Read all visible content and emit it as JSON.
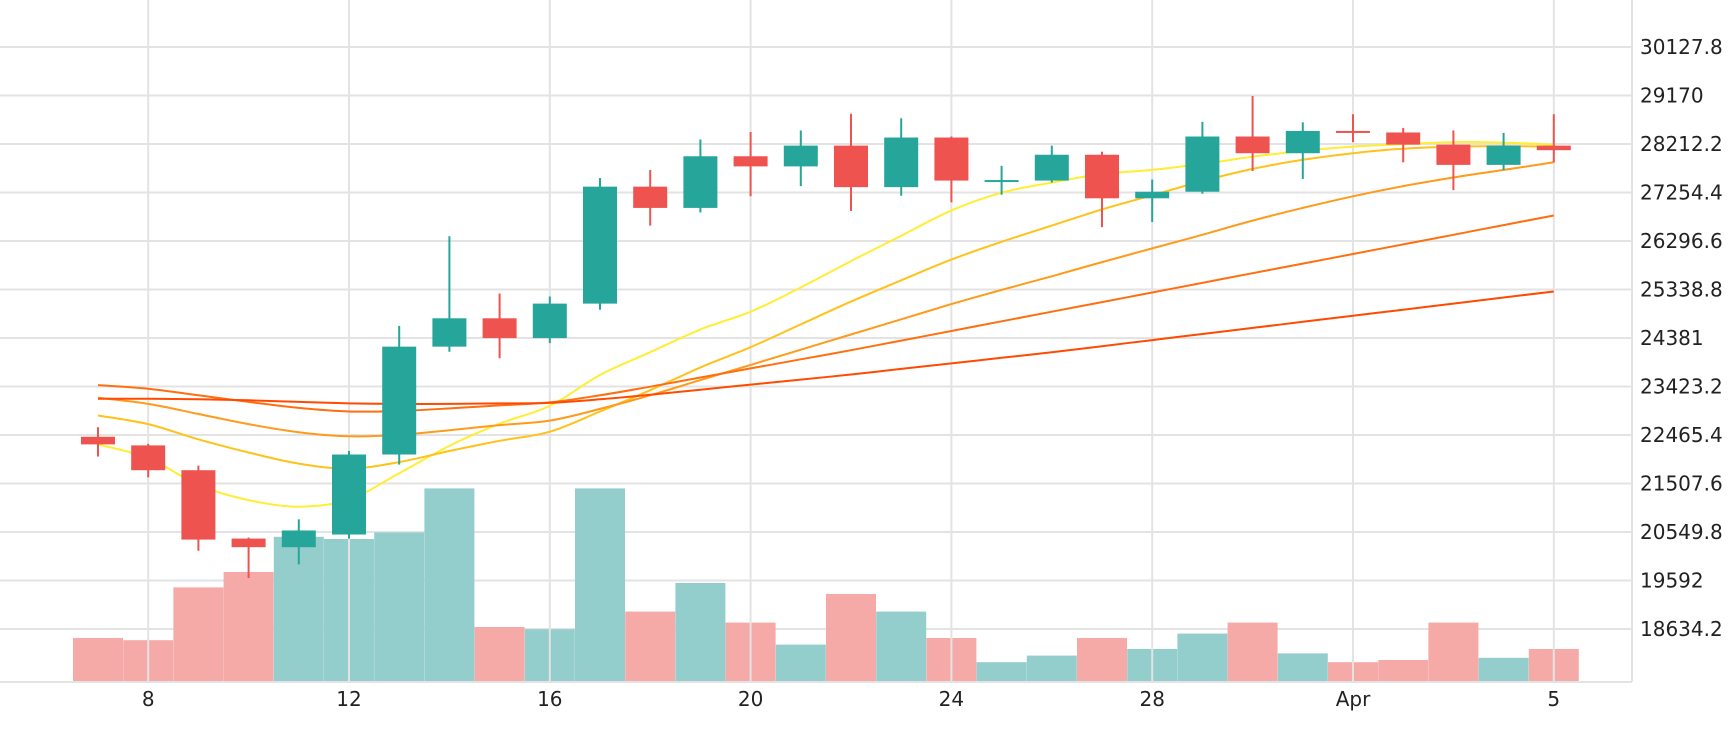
{
  "chart_data": {
    "type": "candlestick",
    "x_ticks": [
      "8",
      "12",
      "16",
      "20",
      "24",
      "28",
      "Apr",
      "5"
    ],
    "y_ticks": [
      "30127.8",
      "29170",
      "28212.2",
      "27254.4",
      "26296.6",
      "25338.8",
      "24381",
      "23423.2",
      "22465.4",
      "21507.6",
      "20549.8",
      "19592",
      "18634.2"
    ],
    "ylim": [
      17700,
      30500
    ],
    "grid": true,
    "colors": {
      "up": "#26a69a",
      "down": "#ef5350",
      "up_volume": "#93cecc",
      "down_volume": "#f5aaa8",
      "grid": "#e3e3e3",
      "ma_lines": [
        "#ffee33",
        "#ffc21a",
        "#ff9a1a",
        "#ff6f10",
        "#ff4a00"
      ]
    },
    "candles": [
      {
        "date": "Mar 7",
        "open": 22430,
        "high": 22620,
        "low": 22040,
        "close": 22280
      },
      {
        "date": "Mar 8",
        "open": 22260,
        "high": 22290,
        "low": 21630,
        "close": 21770
      },
      {
        "date": "Mar 9",
        "open": 21770,
        "high": 21860,
        "low": 20180,
        "close": 20400
      },
      {
        "date": "Mar 10",
        "open": 20420,
        "high": 20440,
        "low": 19640,
        "close": 20250
      },
      {
        "date": "Mar 11",
        "open": 20250,
        "high": 20800,
        "low": 19910,
        "close": 20580
      },
      {
        "date": "Mar 12",
        "open": 20500,
        "high": 22150,
        "low": 20420,
        "close": 22080
      },
      {
        "date": "Mar 13",
        "open": 22080,
        "high": 24620,
        "low": 21880,
        "close": 24210
      },
      {
        "date": "Mar 14",
        "open": 24210,
        "high": 26390,
        "low": 24110,
        "close": 24770
      },
      {
        "date": "Mar 15",
        "open": 24770,
        "high": 25260,
        "low": 23980,
        "close": 24380
      },
      {
        "date": "Mar 16",
        "open": 24380,
        "high": 25200,
        "low": 24280,
        "close": 25060
      },
      {
        "date": "Mar 17",
        "open": 25060,
        "high": 27540,
        "low": 24940,
        "close": 27370
      },
      {
        "date": "Mar 18",
        "open": 27370,
        "high": 27700,
        "low": 26600,
        "close": 26950
      },
      {
        "date": "Mar 19",
        "open": 26950,
        "high": 28300,
        "low": 26860,
        "close": 27970
      },
      {
        "date": "Mar 20",
        "open": 27970,
        "high": 28450,
        "low": 27180,
        "close": 27770
      },
      {
        "date": "Mar 21",
        "open": 27770,
        "high": 28480,
        "low": 27380,
        "close": 28180
      },
      {
        "date": "Mar 22",
        "open": 28180,
        "high": 28810,
        "low": 26890,
        "close": 27360
      },
      {
        "date": "Mar 23",
        "open": 27360,
        "high": 28720,
        "low": 27190,
        "close": 28340
      },
      {
        "date": "Mar 24",
        "open": 28340,
        "high": 28360,
        "low": 27060,
        "close": 27490
      },
      {
        "date": "Mar 25",
        "open": 27490,
        "high": 27780,
        "low": 27210,
        "close": 27500
      },
      {
        "date": "Mar 26",
        "open": 27490,
        "high": 28180,
        "low": 27450,
        "close": 28000
      },
      {
        "date": "Mar 27",
        "open": 28000,
        "high": 28060,
        "low": 26570,
        "close": 27140
      },
      {
        "date": "Mar 28",
        "open": 27140,
        "high": 27510,
        "low": 26670,
        "close": 27270
      },
      {
        "date": "Mar 29",
        "open": 27270,
        "high": 28650,
        "low": 27230,
        "close": 28360
      },
      {
        "date": "Mar 30",
        "open": 28360,
        "high": 29160,
        "low": 27680,
        "close": 28030
      },
      {
        "date": "Mar 31",
        "open": 28030,
        "high": 28640,
        "low": 27520,
        "close": 28470
      },
      {
        "date": "Apr 1",
        "open": 28470,
        "high": 28800,
        "low": 28250,
        "close": 28440
      },
      {
        "date": "Apr 2",
        "open": 28440,
        "high": 28530,
        "low": 27850,
        "close": 28200
      },
      {
        "date": "Apr 3",
        "open": 28200,
        "high": 28480,
        "low": 27300,
        "close": 27800
      },
      {
        "date": "Apr 4",
        "open": 27800,
        "high": 28430,
        "low": 27700,
        "close": 28180
      },
      {
        "date": "Apr 5",
        "open": 28180,
        "high": 28800,
        "low": 27850,
        "close": 28090
      }
    ],
    "volume": {
      "ylim": [
        0,
        100
      ],
      "values": [
        20,
        19,
        43,
        50,
        66,
        65,
        68,
        88,
        25,
        24,
        88,
        32,
        45,
        27,
        17,
        40,
        32,
        20,
        9,
        12,
        20,
        15,
        22,
        27,
        13,
        9,
        10,
        27,
        11,
        15
      ]
    },
    "moving_averages": [
      {
        "values": [
          22280,
          22010,
          21480,
          21180,
          21050,
          21190,
          21710,
          22250,
          22690,
          23040,
          23650,
          24100,
          24550,
          24900,
          25380,
          25900,
          26400,
          26900,
          27250,
          27450,
          27620,
          27700,
          27820,
          27960,
          28080,
          28160,
          28210,
          28250,
          28240,
          28200
        ]
      },
      {
        "values": [
          22850,
          22680,
          22380,
          22120,
          21900,
          21800,
          21930,
          22150,
          22350,
          22530,
          22930,
          23350,
          23800,
          24200,
          24650,
          25100,
          25520,
          25930,
          26280,
          26600,
          26920,
          27200,
          27480,
          27720,
          27900,
          28030,
          28120,
          28160,
          28170,
          28160
        ]
      },
      {
        "values": [
          23200,
          23080,
          22880,
          22680,
          22520,
          22440,
          22470,
          22560,
          22660,
          22750,
          22980,
          23250,
          23550,
          23850,
          24150,
          24450,
          24750,
          25050,
          25330,
          25600,
          25880,
          26150,
          26420,
          26700,
          26950,
          27180,
          27380,
          27550,
          27700,
          27850
        ]
      },
      {
        "values": [
          23450,
          23380,
          23250,
          23120,
          23000,
          22930,
          22940,
          22990,
          23050,
          23110,
          23250,
          23420,
          23600,
          23780,
          23960,
          24140,
          24330,
          24520,
          24710,
          24900,
          25090,
          25280,
          25470,
          25660,
          25850,
          26040,
          26230,
          26420,
          26610,
          26800
        ]
      },
      {
        "values": [
          23180,
          23180,
          23170,
          23150,
          23120,
          23090,
          23080,
          23080,
          23090,
          23100,
          23170,
          23260,
          23360,
          23460,
          23560,
          23660,
          23770,
          23880,
          23990,
          24100,
          24220,
          24340,
          24460,
          24580,
          24700,
          24820,
          24940,
          25060,
          25180,
          25300
        ]
      }
    ]
  }
}
